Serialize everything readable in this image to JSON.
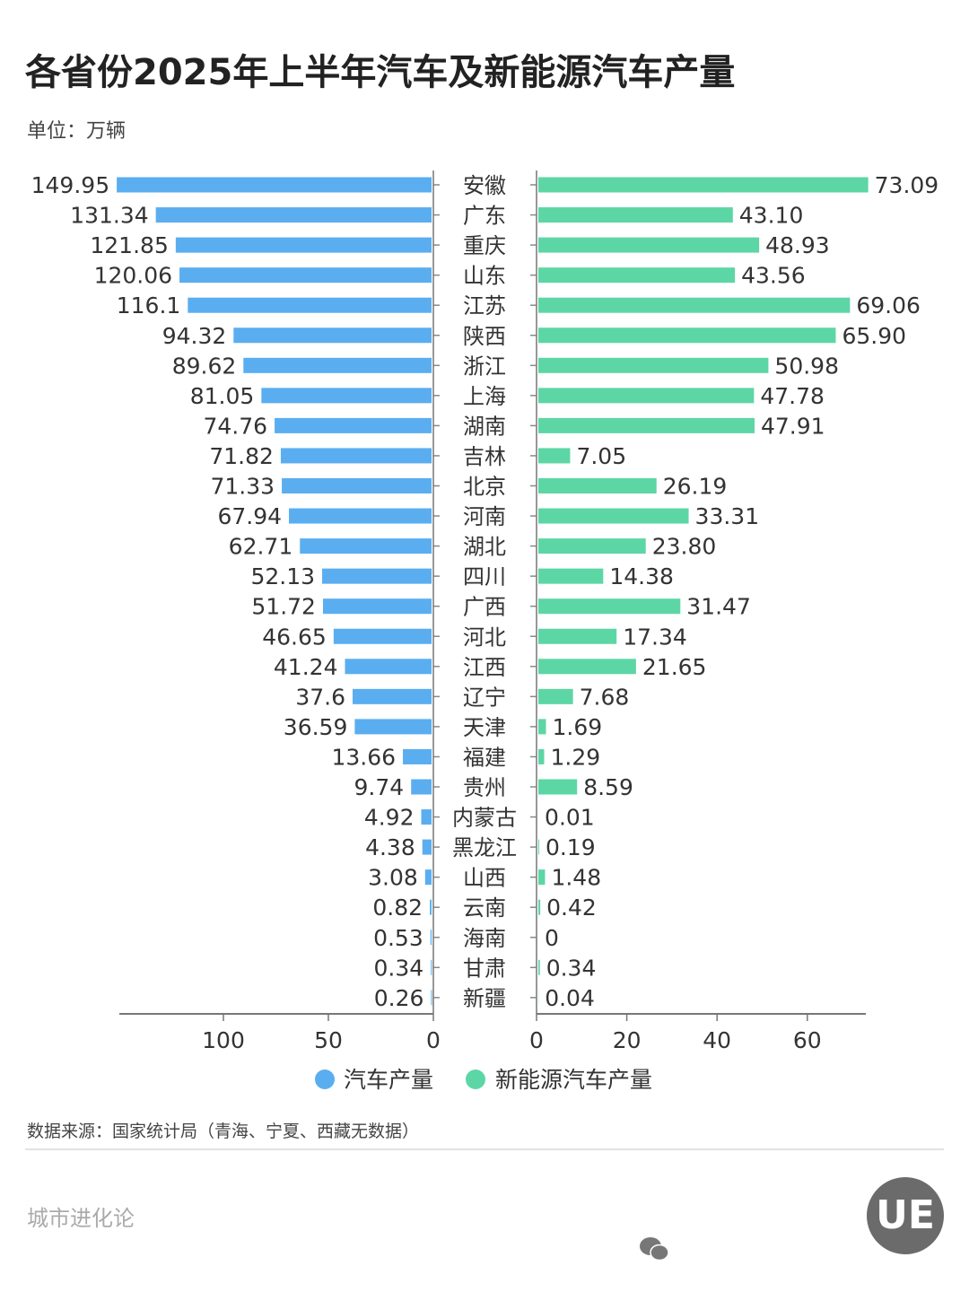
{
  "title": "各省份2025年上半年汽车及新能源汽车产量",
  "unit": "单位：万辆",
  "source": "数据来源：国家统计局（青海、宁夏、西藏无数据）",
  "brand": "城市进化论",
  "logo": "UE",
  "colors": {
    "car": "#5aaef0",
    "nev": "#5dd6a5"
  },
  "chart_data": {
    "type": "bar",
    "orientation": "horizontal-butterfly",
    "categories": [
      "安徽",
      "广东",
      "重庆",
      "山东",
      "江苏",
      "陕西",
      "浙江",
      "上海",
      "湖南",
      "吉林",
      "北京",
      "河南",
      "湖北",
      "四川",
      "广西",
      "河北",
      "江西",
      "辽宁",
      "天津",
      "福建",
      "贵州",
      "内蒙古",
      "黑龙江",
      "山西",
      "云南",
      "海南",
      "甘肃",
      "新疆"
    ],
    "series": [
      {
        "name": "汽车产量",
        "values": [
          149.95,
          131.34,
          121.85,
          120.06,
          116.1,
          94.32,
          89.62,
          81.05,
          74.76,
          71.82,
          71.33,
          67.94,
          62.71,
          52.13,
          51.72,
          46.65,
          41.24,
          37.6,
          36.59,
          13.66,
          9.74,
          4.92,
          4.38,
          3.08,
          0.82,
          0.53,
          0.34,
          0.26
        ],
        "labels": [
          "149.95",
          "131.34",
          "121.85",
          "120.06",
          "116.1",
          "94.32",
          "89.62",
          "81.05",
          "74.76",
          "71.82",
          "71.33",
          "67.94",
          "62.71",
          "52.13",
          "51.72",
          "46.65",
          "41.24",
          "37.6",
          "36.59",
          "13.66",
          "9.74",
          "4.92",
          "4.38",
          "3.08",
          "0.82",
          "0.53",
          "0.34",
          "0.26"
        ],
        "xlim": [
          0,
          150
        ],
        "ticks": [
          "100",
          "50",
          "0"
        ]
      },
      {
        "name": "新能源汽车产量",
        "values": [
          73.09,
          43.1,
          48.93,
          43.56,
          69.06,
          65.9,
          50.98,
          47.78,
          47.91,
          7.05,
          26.19,
          33.31,
          23.8,
          14.38,
          31.47,
          17.34,
          21.65,
          7.68,
          1.69,
          1.29,
          8.59,
          0.01,
          0.19,
          1.48,
          0.42,
          0,
          0.34,
          0.04
        ],
        "labels": [
          "73.09",
          "43.10",
          "48.93",
          "43.56",
          "69.06",
          "65.90",
          "50.98",
          "47.78",
          "47.91",
          "7.05",
          "26.19",
          "33.31",
          "23.80",
          "14.38",
          "31.47",
          "17.34",
          "21.65",
          "7.68",
          "1.69",
          "1.29",
          "8.59",
          "0.01",
          "0.19",
          "1.48",
          "0.42",
          "0",
          "0.34",
          "0.04"
        ],
        "xlim": [
          0,
          73
        ],
        "ticks": [
          "0",
          "20",
          "40",
          "60"
        ]
      }
    ],
    "legend": "bottom-center",
    "grid": false
  }
}
